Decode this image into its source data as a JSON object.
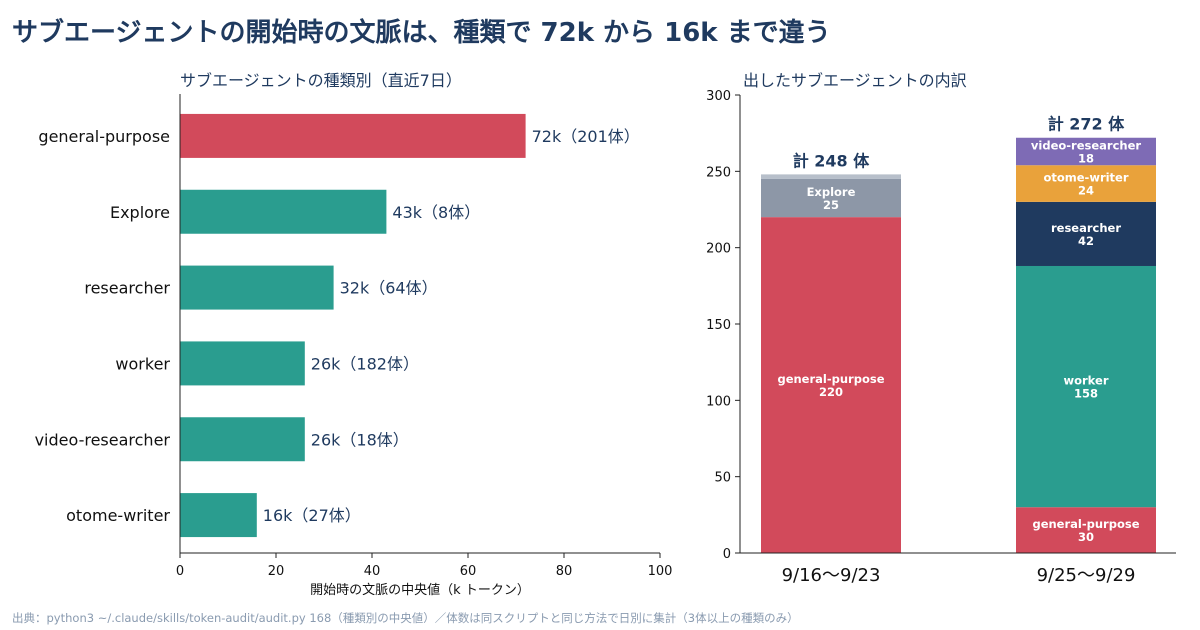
{
  "title": "サブエージェントの開始時の文脈は、種類で 72k から 16k まで違う",
  "footnote": "出典：python3 ~/.claude/skills/token-audit/audit.py 168（種類別の中央値）／体数は同スクリプトと同じ方法で日別に集計（3体以上の種類のみ）",
  "colors": {
    "red": "#d24a5b",
    "teal": "#2a9d8f",
    "gray": "#8d97a7",
    "gray_light": "#b7bfca",
    "navy": "#1f3a5f",
    "orange": "#e9a23b",
    "purple": "#7e6bb5",
    "text": "#1f3a5f"
  },
  "chart_data": [
    {
      "type": "bar",
      "orientation": "horizontal",
      "title": "サブエージェントの種類別（直近7日）",
      "xlabel": "開始時の文脈の中央値（k トークン）",
      "xlim": [
        0,
        100
      ],
      "xticks": [
        "0",
        "20",
        "40",
        "60",
        "80",
        "100"
      ],
      "categories": [
        "general-purpose",
        "Explore",
        "researcher",
        "worker",
        "video-researcher",
        "otome-writer"
      ],
      "values": [
        72,
        43,
        32,
        26,
        26,
        16
      ],
      "labels": [
        "72k（201体）",
        "43k（8体）",
        "32k（64体）",
        "26k（182体）",
        "26k（18体）",
        "16k（27体）"
      ],
      "colors": [
        "#d24a5b",
        "#2a9d8f",
        "#2a9d8f",
        "#2a9d8f",
        "#2a9d8f",
        "#2a9d8f"
      ]
    },
    {
      "type": "bar",
      "stacked": true,
      "title": "出したサブエージェントの内訳",
      "ylim": [
        0,
        300
      ],
      "yticks": [
        "0",
        "50",
        "100",
        "150",
        "200",
        "250",
        "300"
      ],
      "categories": [
        "9/16〜9/23",
        "9/25〜9/29"
      ],
      "totals": [
        "計 248 体",
        "計 272 体"
      ],
      "stacks": [
        [
          {
            "name": "general-purpose",
            "value": 220,
            "color": "#d24a5b"
          },
          {
            "name": "Explore",
            "value": 25,
            "color": "#8d97a7"
          },
          {
            "name": "",
            "value": 3,
            "color": "#b7bfca"
          }
        ],
        [
          {
            "name": "general-purpose",
            "value": 30,
            "color": "#d24a5b"
          },
          {
            "name": "worker",
            "value": 158,
            "color": "#2a9d8f"
          },
          {
            "name": "researcher",
            "value": 42,
            "color": "#1f3a5f"
          },
          {
            "name": "otome-writer",
            "value": 24,
            "color": "#e9a23b"
          },
          {
            "name": "video-researcher",
            "value": 18,
            "color": "#7e6bb5"
          }
        ]
      ]
    }
  ]
}
